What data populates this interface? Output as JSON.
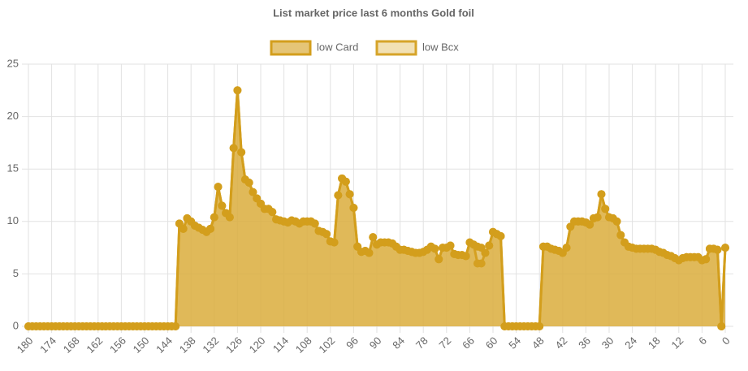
{
  "chart_data": {
    "type": "area",
    "title": "List market price last 6 months Gold foil",
    "x": [
      180,
      179,
      178,
      177,
      176,
      175,
      174,
      173,
      172,
      171,
      170,
      169,
      168,
      167,
      166,
      165,
      164,
      163,
      162,
      161,
      160,
      159,
      158,
      157,
      156,
      155,
      154,
      153,
      152,
      151,
      150,
      149,
      148,
      147,
      146,
      145,
      144,
      143,
      142,
      141,
      140,
      139,
      138,
      137,
      136,
      135,
      134,
      133,
      132,
      131,
      130,
      129,
      128,
      127,
      126,
      125,
      124,
      123,
      122,
      121,
      120,
      119,
      118,
      117,
      116,
      115,
      114,
      113,
      112,
      111,
      110,
      109,
      108,
      107,
      106,
      105,
      104,
      103,
      102,
      101,
      100,
      99,
      98,
      97,
      96,
      95,
      94,
      93,
      92,
      91,
      90,
      89,
      88,
      87,
      86,
      85,
      84,
      83,
      82,
      81,
      80,
      79,
      78,
      77,
      76,
      75,
      74,
      73,
      72,
      71,
      70,
      69,
      68,
      67,
      66,
      65,
      64,
      63,
      62,
      61,
      60,
      59,
      58,
      57,
      56,
      55,
      54,
      53,
      52,
      51,
      50,
      49,
      48,
      47,
      46,
      45,
      44,
      43,
      42,
      41,
      40,
      39,
      38,
      37,
      36,
      35,
      34,
      33,
      32,
      31,
      30,
      29,
      28,
      27,
      26,
      25,
      24,
      23,
      22,
      21,
      20,
      19,
      18,
      17,
      16,
      15,
      14,
      13,
      12,
      11,
      10,
      9,
      8,
      7,
      6,
      5,
      4,
      3,
      2,
      1,
      0
    ],
    "series": [
      {
        "name": "low Card",
        "color": "#d39e1c",
        "fill": "rgba(211,158,28,0.6)",
        "values": [
          0,
          0,
          0,
          0,
          0,
          0,
          0,
          0,
          0,
          0,
          0,
          0,
          0,
          0,
          0,
          0,
          0,
          0,
          0,
          0,
          0,
          0,
          0,
          0,
          0,
          0,
          0,
          0,
          0,
          0,
          0,
          0,
          0,
          0,
          0,
          0,
          0,
          0,
          0,
          9.8,
          9.3,
          10.3,
          10.0,
          9.6,
          9.4,
          9.2,
          9.0,
          9.3,
          10.4,
          13.3,
          11.5,
          10.8,
          10.4,
          17.0,
          22.5,
          16.6,
          14.0,
          13.7,
          12.8,
          12.2,
          11.7,
          11.2,
          11.2,
          10.9,
          10.2,
          10.1,
          10.0,
          9.9,
          10.1,
          10.0,
          9.8,
          10.0,
          10.0,
          10.0,
          9.8,
          9.1,
          9.0,
          8.8,
          8.1,
          8.0,
          12.5,
          14.1,
          13.8,
          12.6,
          11.3,
          7.6,
          7.1,
          7.2,
          7.0,
          8.5,
          7.8,
          8.0,
          8.0,
          8.0,
          7.9,
          7.6,
          7.3,
          7.3,
          7.2,
          7.1,
          7.0,
          7.0,
          7.1,
          7.3,
          7.6,
          7.4,
          6.4,
          7.5,
          7.5,
          7.7,
          6.9,
          6.8,
          6.8,
          6.7,
          8.0,
          7.8,
          7.6,
          7.5,
          7.0,
          7.7,
          9.0,
          8.8,
          8.6,
          0,
          0,
          0,
          0,
          0,
          0,
          0,
          0,
          0,
          0,
          7.6,
          7.6,
          7.4,
          7.3,
          7.2,
          7.0,
          7.5,
          9.5,
          10.0,
          10.0,
          10.0,
          9.9,
          9.7,
          10.3,
          10.4,
          12.6,
          11.2,
          10.4,
          10.3,
          10.0,
          8.7,
          8.0,
          7.6,
          7.5,
          7.4,
          7.4,
          7.4,
          7.4,
          7.4,
          7.3,
          7.1,
          7.0,
          6.8,
          6.7,
          6.5,
          6.3,
          6.5,
          6.6,
          6.6,
          6.6,
          6.6,
          6.3,
          6.4,
          7.4,
          7.4,
          7.3,
          0,
          7.5
        ]
      },
      {
        "name": "low Bcx",
        "color": "#d6a429",
        "fill": "rgba(236,212,150,0.7)",
        "values": [
          0,
          0,
          0,
          0,
          0,
          0,
          0,
          0,
          0,
          0,
          0,
          0,
          0,
          0,
          0,
          0,
          0,
          0,
          0,
          0,
          0,
          0,
          0,
          0,
          0,
          0,
          0,
          0,
          0,
          0,
          0,
          0,
          0,
          0,
          0,
          0,
          0,
          0,
          0,
          9.8,
          9.3,
          10.3,
          10.0,
          9.6,
          9.4,
          9.2,
          9.0,
          9.3,
          10.4,
          13.3,
          11.5,
          10.8,
          10.4,
          17.0,
          22.5,
          16.6,
          14.0,
          13.7,
          12.8,
          12.2,
          11.7,
          11.2,
          11.2,
          10.9,
          10.2,
          10.1,
          10.0,
          9.9,
          10.1,
          10.0,
          9.8,
          10.0,
          10.0,
          10.0,
          9.8,
          9.1,
          9.0,
          8.8,
          8.1,
          8.0,
          12.5,
          14.1,
          13.8,
          12.6,
          11.3,
          7.6,
          7.1,
          7.2,
          7.0,
          8.5,
          7.8,
          8.0,
          8.0,
          8.0,
          7.9,
          7.6,
          7.3,
          7.3,
          7.2,
          7.1,
          7.0,
          7.0,
          7.1,
          7.3,
          7.6,
          7.4,
          6.4,
          7.5,
          7.5,
          7.7,
          6.9,
          6.8,
          6.8,
          6.7,
          8.0,
          7.8,
          6.0,
          6.0,
          7.0,
          7.7,
          9.0,
          8.8,
          8.6,
          0,
          0,
          0,
          0,
          0,
          0,
          0,
          0,
          0,
          0,
          7.6,
          7.6,
          7.4,
          7.3,
          7.2,
          7.0,
          7.5,
          9.5,
          10.0,
          10.0,
          10.0,
          9.9,
          9.7,
          10.3,
          10.4,
          12.6,
          11.2,
          10.4,
          10.3,
          10.0,
          8.7,
          8.0,
          7.6,
          7.5,
          7.4,
          7.4,
          7.4,
          7.4,
          7.4,
          7.3,
          7.1,
          7.0,
          6.8,
          6.7,
          6.5,
          6.3,
          6.5,
          6.6,
          6.6,
          6.6,
          6.6,
          6.3,
          6.4,
          7.4,
          7.4,
          7.3,
          0,
          7.5
        ]
      }
    ],
    "xlim": [
      180,
      0
    ],
    "xticks": [
      180,
      174,
      168,
      162,
      156,
      150,
      144,
      138,
      132,
      126,
      120,
      114,
      108,
      102,
      96,
      90,
      84,
      78,
      72,
      66,
      60,
      54,
      48,
      42,
      36,
      30,
      24,
      18,
      12,
      6,
      0
    ],
    "ylim": [
      0,
      25
    ],
    "yticks": [
      0,
      5,
      10,
      15,
      20,
      25
    ],
    "grid": true,
    "legend": "top"
  }
}
